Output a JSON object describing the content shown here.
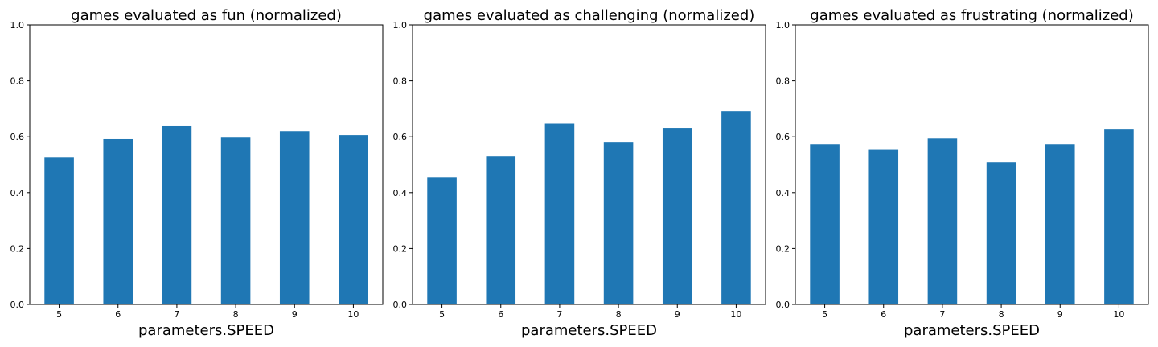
{
  "chart_data": [
    {
      "type": "bar",
      "title": "games evaluated as fun (normalized)",
      "xlabel": "parameters.SPEED",
      "ylabel": "",
      "categories": [
        "5",
        "6",
        "7",
        "8",
        "9",
        "10"
      ],
      "values": [
        0.525,
        0.592,
        0.638,
        0.597,
        0.62,
        0.606
      ],
      "ylim": [
        0,
        1.0
      ],
      "yticks": [
        "0.0",
        "0.2",
        "0.4",
        "0.6",
        "0.8",
        "1.0"
      ],
      "color": "#1f77b4",
      "grid": false
    },
    {
      "type": "bar",
      "title": "games evaluated as challenging (normalized)",
      "xlabel": "parameters.SPEED",
      "ylabel": "",
      "categories": [
        "5",
        "6",
        "7",
        "8",
        "9",
        "10"
      ],
      "values": [
        0.456,
        0.531,
        0.648,
        0.58,
        0.632,
        0.692
      ],
      "ylim": [
        0,
        1.0
      ],
      "yticks": [
        "0.0",
        "0.2",
        "0.4",
        "0.6",
        "0.8",
        "1.0"
      ],
      "color": "#1f77b4",
      "grid": false
    },
    {
      "type": "bar",
      "title": "games evaluated as frustrating (normalized)",
      "xlabel": "parameters.SPEED",
      "ylabel": "",
      "categories": [
        "5",
        "6",
        "7",
        "8",
        "9",
        "10"
      ],
      "values": [
        0.574,
        0.553,
        0.594,
        0.508,
        0.574,
        0.626
      ],
      "ylim": [
        0,
        1.0
      ],
      "yticks": [
        "0.0",
        "0.2",
        "0.4",
        "0.6",
        "0.8",
        "1.0"
      ],
      "color": "#1f77b4",
      "grid": false
    }
  ]
}
